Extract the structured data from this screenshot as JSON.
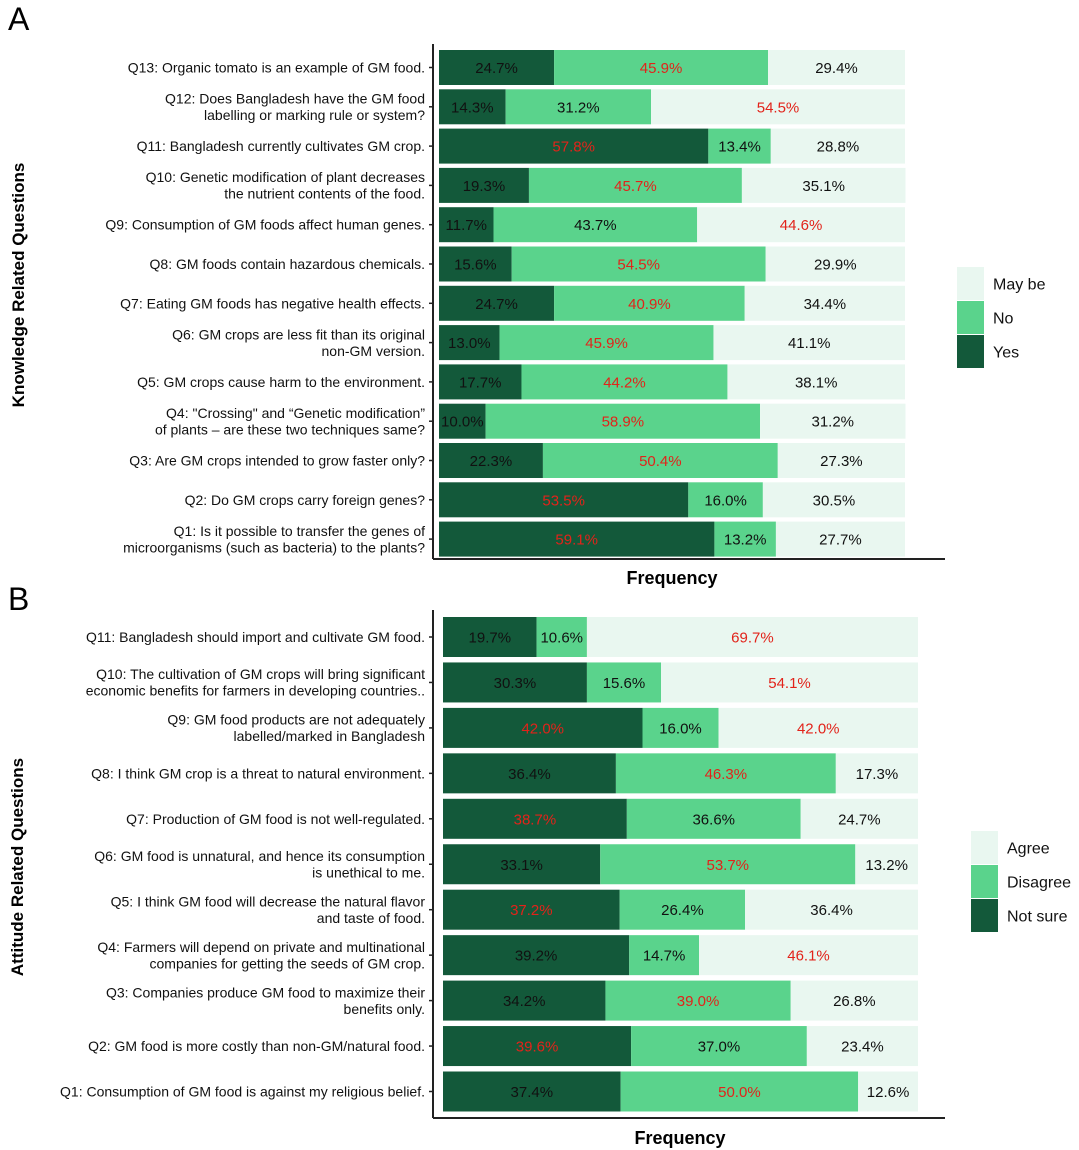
{
  "colors": {
    "dark": "#13593a",
    "mid": "#5ad38c",
    "light": "#e9f7f0",
    "highlight_text": "#e2231a",
    "normal_text": "#111111",
    "axis": "#222222"
  },
  "chart_data": [
    {
      "panel": "A",
      "type": "bar",
      "stacked": true,
      "orientation": "horizontal",
      "ylabel": "Knowledge Related Questions",
      "xlabel": "Frequency",
      "xlim": [
        0,
        100
      ],
      "legend_position": "right",
      "categories": [
        [
          "Q13: Organic tomato is an example of GM food."
        ],
        [
          "Q12: Does Bangladesh have the GM food",
          "labelling or marking rule or system?"
        ],
        [
          "Q11: Bangladesh currently cultivates GM crop."
        ],
        [
          "Q10: Genetic modification of plant decreases",
          "the nutrient contents of the food."
        ],
        [
          "Q9: Consumption of GM foods affect human genes."
        ],
        [
          "Q8: GM foods contain hazardous chemicals."
        ],
        [
          "Q7: Eating GM foods has negative health effects."
        ],
        [
          "Q6: GM crops are less fit than its original",
          "non-GM version."
        ],
        [
          "Q5: GM crops cause harm to the environment."
        ],
        [
          "Q4: \"Crossing\" and “Genetic modification”",
          "of plants – are these two techniques same?"
        ],
        [
          "Q3: Are GM crops intended to grow faster only?"
        ],
        [
          "Q2: Do GM crops carry foreign genes?"
        ],
        [
          "Q1: Is it possible to transfer the genes of",
          "microorganisms (such as bacteria) to the plants?"
        ]
      ],
      "series": [
        {
          "name": "Yes",
          "color": "dark",
          "values": [
            24.7,
            14.3,
            57.8,
            19.3,
            11.7,
            15.6,
            24.7,
            13.0,
            17.7,
            10.0,
            22.3,
            53.5,
            59.1
          ]
        },
        {
          "name": "No",
          "color": "mid",
          "values": [
            45.9,
            31.2,
            13.4,
            45.7,
            43.7,
            54.5,
            40.9,
            45.9,
            44.2,
            58.9,
            50.4,
            16.0,
            13.2
          ]
        },
        {
          "name": "May be",
          "color": "light",
          "values": [
            29.4,
            54.5,
            28.8,
            35.1,
            44.6,
            29.9,
            34.4,
            41.1,
            38.1,
            31.2,
            27.3,
            30.5,
            27.7
          ]
        }
      ],
      "data_labels": [
        [
          "24.7%",
          "45.9%",
          "29.4%"
        ],
        [
          "14.3%",
          "31.2%",
          "54.5%"
        ],
        [
          "57.8%",
          "13.4%",
          "28.8%"
        ],
        [
          "19.3%",
          "45.7%",
          "35.1%"
        ],
        [
          "11.7%",
          "43.7%",
          "44.6%"
        ],
        [
          "15.6%",
          "54.5%",
          "29.9%"
        ],
        [
          "24.7%",
          "40.9%",
          "34.4%"
        ],
        [
          "13.0%",
          "45.9%",
          "41.1%"
        ],
        [
          "17.7%",
          "44.2%",
          "38.1%"
        ],
        [
          "10.0%",
          "58.9%",
          "31.2%"
        ],
        [
          "22.3%",
          "50.4%",
          "27.3%"
        ],
        [
          "53.5%",
          "16.0%",
          "30.5%"
        ],
        [
          "59.1%",
          "13.2%",
          "27.7%"
        ]
      ],
      "legend": [
        "May be",
        "No",
        "Yes"
      ]
    },
    {
      "panel": "B",
      "type": "bar",
      "stacked": true,
      "orientation": "horizontal",
      "ylabel": "Attitude Related Questions",
      "xlabel": "Frequency",
      "xlim": [
        0,
        100
      ],
      "legend_position": "right",
      "categories": [
        [
          "Q11: Bangladesh should import and cultivate GM food."
        ],
        [
          "Q10: The cultivation of GM crops will bring  significant",
          "economic benefits for farmers in developing countries.."
        ],
        [
          "Q9: GM food products are not adequately",
          "labelled/marked in Bangladesh"
        ],
        [
          "Q8: I think GM crop is a threat to natural environment."
        ],
        [
          "Q7: Production of GM food is not well-regulated."
        ],
        [
          "Q6: GM food is unnatural, and hence its consumption",
          "is unethical to me."
        ],
        [
          "Q5: I think GM food will decrease the natural flavor",
          "and taste of food."
        ],
        [
          "Q4: Farmers will depend on private and multinational",
          "companies for getting the seeds of GM crop."
        ],
        [
          "Q3: Companies produce GM food to maximize their",
          "benefits only."
        ],
        [
          "Q2: GM food is more costly than non-GM/natural food."
        ],
        [
          "Q1: Consumption of GM food is against my religious belief."
        ]
      ],
      "series": [
        {
          "name": "Not sure",
          "color": "dark",
          "values": [
            19.7,
            30.3,
            42.0,
            36.4,
            38.7,
            33.1,
            37.2,
            39.2,
            34.2,
            39.6,
            37.4
          ]
        },
        {
          "name": "Disagree",
          "color": "mid",
          "values": [
            10.6,
            15.6,
            16.0,
            46.3,
            36.6,
            53.7,
            26.4,
            14.7,
            39.0,
            37.0,
            50.0
          ]
        },
        {
          "name": "Agree",
          "color": "light",
          "values": [
            69.7,
            54.1,
            42.0,
            17.3,
            24.7,
            13.2,
            36.4,
            46.1,
            26.8,
            23.4,
            12.6
          ]
        }
      ],
      "data_labels": [
        [
          "19.7%",
          "10.6%",
          "69.7%"
        ],
        [
          "30.3%",
          "15.6%",
          "54.1%"
        ],
        [
          "42.0%",
          "16.0%",
          "42.0%"
        ],
        [
          "36.4%",
          "46.3%",
          "17.3%"
        ],
        [
          "38.7%",
          "36.6%",
          "24.7%"
        ],
        [
          "33.1%",
          "53.7%",
          "13.2%"
        ],
        [
          "37.2%",
          "26.4%",
          "36.4%"
        ],
        [
          "39.2%",
          "14.7%",
          "46.1%"
        ],
        [
          "34.2%",
          "39.0%",
          "26.8%"
        ],
        [
          "39.6%",
          "37.0%",
          "23.4%"
        ],
        [
          "37.4%",
          "50.0%",
          "12.6%"
        ]
      ],
      "legend": [
        "Agree",
        "Disagree",
        "Not sure"
      ]
    }
  ]
}
